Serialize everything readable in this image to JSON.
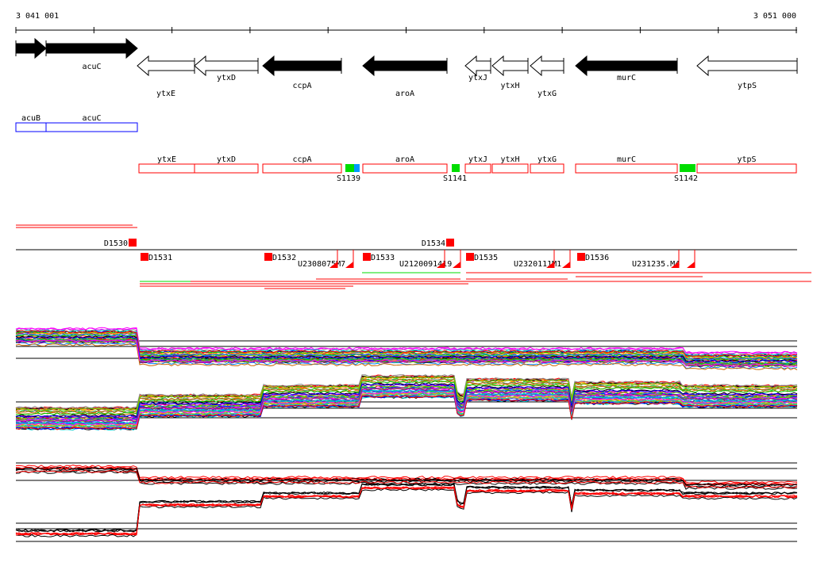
{
  "ruler": {
    "start": "3 041 001",
    "end": "3 051 000"
  },
  "genes": [
    {
      "name": "acuB",
      "strand": "+",
      "style": "filled"
    },
    {
      "name": "acuC",
      "strand": "+",
      "style": "filled"
    },
    {
      "name": "ytxE",
      "strand": "-",
      "style": "outline"
    },
    {
      "name": "ytxD",
      "strand": "-",
      "style": "outline"
    },
    {
      "name": "ccpA",
      "strand": "-",
      "style": "filled"
    },
    {
      "name": "aroA",
      "strand": "-",
      "style": "filled"
    },
    {
      "name": "ytxJ",
      "strand": "-",
      "style": "outline"
    },
    {
      "name": "ytxH",
      "strand": "-",
      "style": "outline"
    },
    {
      "name": "ytxG",
      "strand": "-",
      "style": "outline"
    },
    {
      "name": "murC",
      "strand": "-",
      "style": "filled"
    },
    {
      "name": "ytpS",
      "strand": "-",
      "style": "outline"
    }
  ],
  "blue_boxes": [
    "acuB",
    "acuC"
  ],
  "red_boxes": [
    "ytxE",
    "ytxD",
    "ccpA",
    "aroA",
    "ytxJ",
    "ytxH",
    "ytxG",
    "murC",
    "ytpS"
  ],
  "s_features": [
    "S1139",
    "S1141",
    "S1142"
  ],
  "upper_features": [
    "D1530",
    "D1534"
  ],
  "lower_features": [
    "D1531",
    "D1532",
    "D1533",
    "D1535",
    "D1536"
  ],
  "u_labels": [
    "U2308075M7",
    "U2120091419",
    "U2320111M1",
    "U231235.M4"
  ],
  "colors": {
    "forward": "#000000",
    "box_blue": "#0000ff",
    "box_red": "#ff0000",
    "s_green": "#00dd00",
    "s_blue": "#0099ff",
    "feature": "#ff0000"
  }
}
